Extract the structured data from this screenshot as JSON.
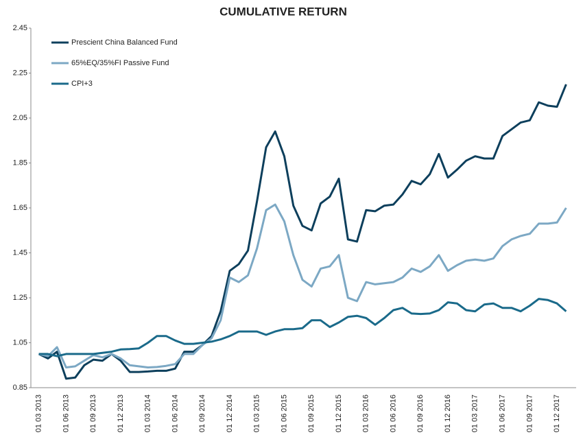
{
  "chart_data": {
    "type": "line",
    "title": "CUMULATIVE RETURN",
    "categories": [
      "01 03 2013",
      null,
      null,
      "01 06 2013",
      null,
      null,
      "01 09 2013",
      null,
      null,
      "01 12 2013",
      null,
      null,
      "01 03 2014",
      null,
      null,
      "01 06 2014",
      null,
      null,
      "01 09 2014",
      null,
      null,
      "01 12 2014",
      null,
      null,
      "01 03 2015",
      null,
      null,
      "01 06 2015",
      null,
      null,
      "01 09 2015",
      null,
      null,
      "01 12 2015",
      null,
      null,
      "01 03 2016",
      null,
      null,
      "01 06 2016",
      null,
      null,
      "01 09 2016",
      null,
      null,
      "01 12 2016",
      null,
      null,
      "01 03 2017",
      null,
      null,
      "01 06 2017",
      null,
      null,
      "01 09 2017",
      null,
      null,
      "01 12 2017",
      null
    ],
    "series": [
      {
        "name": "Prescient China Balanced Fund",
        "color": "#0d3f5c",
        "values": [
          1.0,
          0.98,
          1.01,
          0.89,
          0.895,
          0.95,
          0.975,
          0.97,
          1.0,
          0.97,
          0.92,
          0.92,
          0.922,
          0.925,
          0.925,
          0.935,
          1.01,
          1.01,
          1.04,
          1.08,
          1.19,
          1.37,
          1.4,
          1.46,
          1.68,
          1.92,
          1.99,
          1.88,
          1.66,
          1.57,
          1.55,
          1.67,
          1.7,
          1.78,
          1.51,
          1.5,
          1.64,
          1.635,
          1.66,
          1.665,
          1.71,
          1.77,
          1.755,
          1.8,
          1.89,
          1.785,
          1.82,
          1.86,
          1.88,
          1.87,
          1.87,
          1.97,
          2.0,
          2.03,
          2.04,
          2.12,
          2.105,
          2.1,
          2.2
        ]
      },
      {
        "name": "65%EQ/35%FI Passive Fund",
        "color": "#7ca8c4",
        "values": [
          1.0,
          0.99,
          1.03,
          0.94,
          0.945,
          0.97,
          0.995,
          0.985,
          1.0,
          0.98,
          0.95,
          0.945,
          0.94,
          0.942,
          0.947,
          0.955,
          1.0,
          1.0,
          1.04,
          1.07,
          1.15,
          1.34,
          1.32,
          1.35,
          1.47,
          1.64,
          1.665,
          1.59,
          1.44,
          1.33,
          1.3,
          1.38,
          1.39,
          1.44,
          1.25,
          1.235,
          1.32,
          1.31,
          1.315,
          1.32,
          1.34,
          1.38,
          1.365,
          1.39,
          1.44,
          1.37,
          1.395,
          1.415,
          1.42,
          1.415,
          1.425,
          1.48,
          1.51,
          1.525,
          1.535,
          1.58,
          1.58,
          1.585,
          1.65
        ]
      },
      {
        "name": "CPI+3",
        "color": "#1a6a8a",
        "values": [
          1.0,
          1.0,
          0.99,
          1.0,
          1.0,
          1.0,
          1.0,
          1.005,
          1.01,
          1.02,
          1.022,
          1.025,
          1.05,
          1.08,
          1.08,
          1.06,
          1.045,
          1.045,
          1.05,
          1.055,
          1.065,
          1.08,
          1.1,
          1.1,
          1.1,
          1.085,
          1.1,
          1.11,
          1.11,
          1.115,
          1.15,
          1.15,
          1.12,
          1.14,
          1.165,
          1.17,
          1.16,
          1.13,
          1.16,
          1.195,
          1.205,
          1.18,
          1.178,
          1.18,
          1.195,
          1.23,
          1.225,
          1.195,
          1.19,
          1.22,
          1.225,
          1.205,
          1.205,
          1.19,
          1.215,
          1.245,
          1.24,
          1.225,
          1.19
        ]
      }
    ],
    "ylim": [
      0.85,
      2.45
    ],
    "yticks": [
      0.85,
      1.05,
      1.25,
      1.45,
      1.65,
      1.85,
      2.05,
      2.25,
      2.45
    ],
    "grid": false,
    "legend": "top-left"
  }
}
